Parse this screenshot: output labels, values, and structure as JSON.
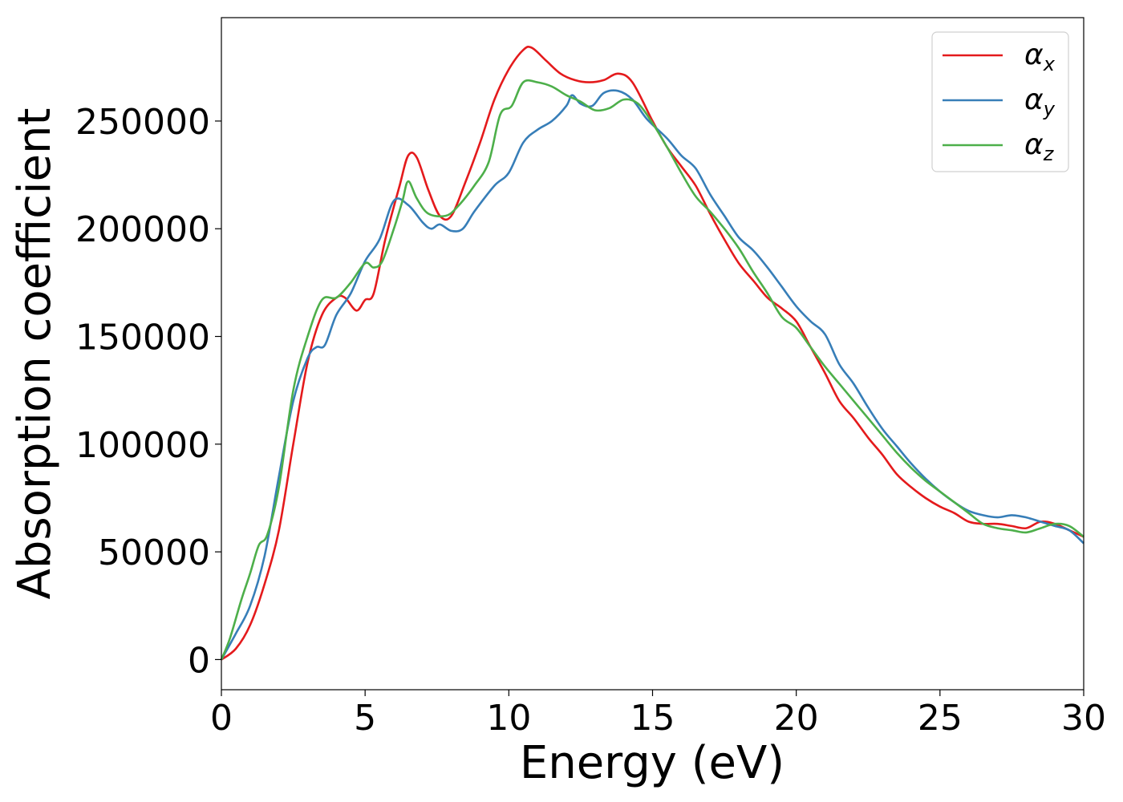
{
  "chart_data": {
    "type": "line",
    "title": "",
    "xlabel": "Energy (eV)",
    "ylabel": "Absorption coefficient",
    "xlim": [
      0,
      30
    ],
    "ylim": [
      -14000,
      298000
    ],
    "xticks": [
      0,
      5,
      10,
      15,
      20,
      25,
      30
    ],
    "xtick_labels": [
      "0",
      "5",
      "10",
      "15",
      "20",
      "25",
      "30"
    ],
    "yticks": [
      0,
      50000,
      100000,
      150000,
      200000,
      250000
    ],
    "ytick_labels": [
      "0",
      "50000",
      "100000",
      "150000",
      "200000",
      "250000"
    ],
    "grid": false,
    "legend_position": "top-right",
    "series": [
      {
        "name": "α_x",
        "symbol": "α",
        "subscript": "x",
        "color": "#e41a1c",
        "points": [
          [
            0,
            0
          ],
          [
            0.5,
            5000
          ],
          [
            1,
            16000
          ],
          [
            1.5,
            35000
          ],
          [
            2,
            60000
          ],
          [
            2.5,
            100000
          ],
          [
            3,
            138000
          ],
          [
            3.5,
            160000
          ],
          [
            4,
            168000
          ],
          [
            4.3,
            168000
          ],
          [
            4.7,
            162000
          ],
          [
            5,
            167000
          ],
          [
            5.3,
            170000
          ],
          [
            5.7,
            195000
          ],
          [
            6.2,
            220000
          ],
          [
            6.5,
            234000
          ],
          [
            6.8,
            233000
          ],
          [
            7.2,
            218000
          ],
          [
            7.6,
            206000
          ],
          [
            8,
            206000
          ],
          [
            8.5,
            222000
          ],
          [
            9,
            240000
          ],
          [
            9.5,
            260000
          ],
          [
            10,
            274000
          ],
          [
            10.5,
            283000
          ],
          [
            10.8,
            284000
          ],
          [
            11.3,
            278000
          ],
          [
            11.8,
            272000
          ],
          [
            12.3,
            269000
          ],
          [
            12.8,
            268000
          ],
          [
            13.3,
            269000
          ],
          [
            13.8,
            272000
          ],
          [
            14.3,
            268000
          ],
          [
            15,
            250000
          ],
          [
            15.5,
            238000
          ],
          [
            16,
            229000
          ],
          [
            16.5,
            220000
          ],
          [
            17,
            207000
          ],
          [
            17.5,
            195000
          ],
          [
            18,
            184000
          ],
          [
            18.5,
            176000
          ],
          [
            19,
            168000
          ],
          [
            19.5,
            163000
          ],
          [
            20,
            157000
          ],
          [
            20.5,
            145000
          ],
          [
            21,
            133000
          ],
          [
            21.5,
            120000
          ],
          [
            22,
            112000
          ],
          [
            22.5,
            103000
          ],
          [
            23,
            95000
          ],
          [
            23.5,
            86000
          ],
          [
            24,
            80000
          ],
          [
            24.5,
            75000
          ],
          [
            25,
            71000
          ],
          [
            25.5,
            68000
          ],
          [
            26,
            64000
          ],
          [
            26.5,
            63000
          ],
          [
            27,
            63000
          ],
          [
            27.5,
            62000
          ],
          [
            28,
            61000
          ],
          [
            28.5,
            64000
          ],
          [
            29,
            63000
          ],
          [
            29.5,
            60000
          ],
          [
            30,
            57000
          ]
        ]
      },
      {
        "name": "α_y",
        "symbol": "α",
        "subscript": "y",
        "color": "#377eb8",
        "points": [
          [
            0,
            0
          ],
          [
            0.5,
            12000
          ],
          [
            1,
            25000
          ],
          [
            1.5,
            48000
          ],
          [
            2,
            85000
          ],
          [
            2.5,
            120000
          ],
          [
            3,
            140000
          ],
          [
            3.3,
            145000
          ],
          [
            3.6,
            146000
          ],
          [
            4,
            160000
          ],
          [
            4.5,
            170000
          ],
          [
            5,
            185000
          ],
          [
            5.5,
            195000
          ],
          [
            6,
            213000
          ],
          [
            6.5,
            211000
          ],
          [
            7,
            203000
          ],
          [
            7.3,
            200000
          ],
          [
            7.6,
            202000
          ],
          [
            8,
            199000
          ],
          [
            8.4,
            200000
          ],
          [
            8.8,
            208000
          ],
          [
            9.5,
            220000
          ],
          [
            10,
            226000
          ],
          [
            10.5,
            240000
          ],
          [
            11,
            246000
          ],
          [
            11.5,
            250000
          ],
          [
            12,
            257000
          ],
          [
            12.2,
            262000
          ],
          [
            12.5,
            258000
          ],
          [
            12.9,
            257000
          ],
          [
            13.3,
            263000
          ],
          [
            13.8,
            264000
          ],
          [
            14.3,
            260000
          ],
          [
            14.8,
            251000
          ],
          [
            15.5,
            242000
          ],
          [
            16,
            234000
          ],
          [
            16.5,
            228000
          ],
          [
            17,
            216000
          ],
          [
            17.5,
            206000
          ],
          [
            18,
            196000
          ],
          [
            18.5,
            190000
          ],
          [
            19,
            182000
          ],
          [
            19.5,
            173000
          ],
          [
            20,
            164000
          ],
          [
            20.5,
            157000
          ],
          [
            21,
            151000
          ],
          [
            21.5,
            137000
          ],
          [
            22,
            128000
          ],
          [
            22.5,
            117000
          ],
          [
            23,
            107000
          ],
          [
            23.5,
            99000
          ],
          [
            24,
            91000
          ],
          [
            24.5,
            84000
          ],
          [
            25,
            78000
          ],
          [
            25.5,
            73000
          ],
          [
            26,
            69000
          ],
          [
            26.5,
            67000
          ],
          [
            27,
            66000
          ],
          [
            27.5,
            67000
          ],
          [
            28,
            66000
          ],
          [
            28.5,
            64000
          ],
          [
            29,
            62000
          ],
          [
            29.5,
            60000
          ],
          [
            30,
            54000
          ]
        ]
      },
      {
        "name": "α_z",
        "symbol": "α",
        "subscript": "z",
        "color": "#4daf4a",
        "points": [
          [
            0,
            0
          ],
          [
            0.3,
            10000
          ],
          [
            0.7,
            28000
          ],
          [
            1,
            40000
          ],
          [
            1.3,
            53000
          ],
          [
            1.6,
            58000
          ],
          [
            2,
            80000
          ],
          [
            2.5,
            125000
          ],
          [
            3,
            150000
          ],
          [
            3.5,
            167000
          ],
          [
            4,
            168000
          ],
          [
            4.5,
            175000
          ],
          [
            5,
            184000
          ],
          [
            5.3,
            182000
          ],
          [
            5.6,
            185000
          ],
          [
            6,
            200000
          ],
          [
            6.3,
            213000
          ],
          [
            6.5,
            222000
          ],
          [
            6.8,
            214000
          ],
          [
            7.2,
            207000
          ],
          [
            7.8,
            206000
          ],
          [
            8.2,
            210000
          ],
          [
            8.8,
            220000
          ],
          [
            9.3,
            231000
          ],
          [
            9.7,
            253000
          ],
          [
            10.1,
            257000
          ],
          [
            10.5,
            268000
          ],
          [
            11,
            268000
          ],
          [
            11.5,
            266000
          ],
          [
            12,
            262000
          ],
          [
            12.5,
            259000
          ],
          [
            13,
            255000
          ],
          [
            13.5,
            256000
          ],
          [
            14,
            260000
          ],
          [
            14.5,
            258000
          ],
          [
            15,
            249000
          ],
          [
            15.5,
            238000
          ],
          [
            16,
            226000
          ],
          [
            16.5,
            215000
          ],
          [
            17,
            208000
          ],
          [
            17.5,
            200000
          ],
          [
            18,
            191000
          ],
          [
            18.5,
            180000
          ],
          [
            19,
            170000
          ],
          [
            19.5,
            159000
          ],
          [
            20,
            154000
          ],
          [
            20.5,
            145000
          ],
          [
            21,
            136000
          ],
          [
            21.5,
            128000
          ],
          [
            22,
            120000
          ],
          [
            22.5,
            112000
          ],
          [
            23,
            104000
          ],
          [
            23.5,
            96000
          ],
          [
            24,
            89000
          ],
          [
            24.5,
            83000
          ],
          [
            25,
            78000
          ],
          [
            25.5,
            73000
          ],
          [
            26,
            68000
          ],
          [
            26.5,
            63000
          ],
          [
            27,
            61000
          ],
          [
            27.5,
            60000
          ],
          [
            28,
            59000
          ],
          [
            28.5,
            61000
          ],
          [
            29,
            63000
          ],
          [
            29.5,
            62000
          ],
          [
            30,
            57000
          ]
        ]
      }
    ]
  }
}
